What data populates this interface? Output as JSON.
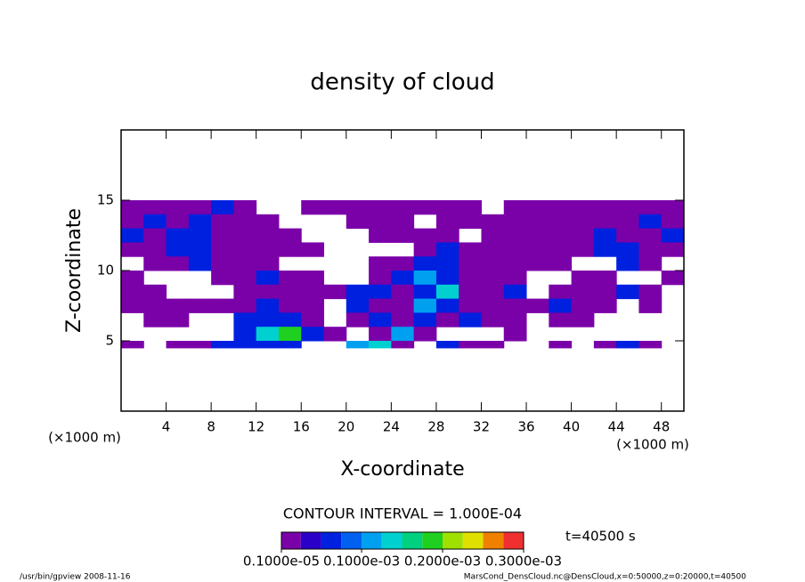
{
  "chart_data": {
    "type": "heatmap",
    "title": "density of cloud",
    "x_label": "X-coordinate",
    "y_label": "Z-coordinate",
    "x_unit": "(×1000 m)",
    "y_unit": "(×1000 m)",
    "xlim": [
      0,
      50
    ],
    "ylim": [
      0,
      20
    ],
    "xticks": [
      4,
      8,
      12,
      16,
      20,
      24,
      28,
      32,
      36,
      40,
      44,
      48
    ],
    "yticks": [
      5,
      10,
      15
    ],
    "x_edges": [
      0,
      2,
      4,
      6,
      8,
      10,
      12,
      14,
      16,
      18,
      20,
      22,
      24,
      26,
      28,
      30,
      32,
      34,
      36,
      38,
      40,
      42,
      44,
      46,
      48,
      50
    ],
    "y_edges": [
      15,
      14,
      13,
      12,
      11,
      10,
      9,
      8,
      7,
      6,
      5,
      4.5
    ],
    "values": [
      [
        2e-05,
        2e-05,
        2e-05,
        2e-05,
        6e-05,
        2e-05,
        null,
        null,
        2e-05,
        2e-05,
        2e-05,
        2e-05,
        2e-05,
        2e-05,
        2e-05,
        2e-05,
        null,
        2e-05,
        2e-05,
        2e-05,
        2e-05,
        2e-05,
        2e-05,
        2e-05,
        2e-05
      ],
      [
        2e-05,
        6e-05,
        2e-05,
        6e-05,
        2e-05,
        2e-05,
        2e-05,
        null,
        null,
        null,
        2e-05,
        2e-05,
        2e-05,
        null,
        2e-05,
        2e-05,
        2e-05,
        2e-05,
        2e-05,
        2e-05,
        2e-05,
        2e-05,
        2e-05,
        6e-05,
        2e-05
      ],
      [
        6e-05,
        2e-05,
        6e-05,
        6e-05,
        2e-05,
        2e-05,
        2e-05,
        2e-05,
        null,
        null,
        null,
        2e-05,
        2e-05,
        2e-05,
        2e-05,
        null,
        2e-05,
        2e-05,
        2e-05,
        2e-05,
        2e-05,
        6e-05,
        2e-05,
        2e-05,
        6e-05
      ],
      [
        2e-05,
        2e-05,
        6e-05,
        6e-05,
        2e-05,
        2e-05,
        2e-05,
        2e-05,
        2e-05,
        null,
        null,
        null,
        null,
        2e-05,
        6e-05,
        2e-05,
        2e-05,
        2e-05,
        2e-05,
        2e-05,
        2e-05,
        6e-05,
        6e-05,
        2e-05,
        2e-05
      ],
      [
        null,
        2e-05,
        2e-05,
        6e-05,
        2e-05,
        2e-05,
        2e-05,
        null,
        null,
        null,
        null,
        2e-05,
        2e-05,
        6e-05,
        6e-05,
        2e-05,
        2e-05,
        2e-05,
        2e-05,
        2e-05,
        null,
        null,
        6e-05,
        2e-05,
        null
      ],
      [
        2e-05,
        null,
        null,
        null,
        2e-05,
        2e-05,
        6e-05,
        2e-05,
        2e-05,
        null,
        null,
        2e-05,
        6e-05,
        0.0001,
        6e-05,
        2e-05,
        2e-05,
        2e-05,
        null,
        null,
        2e-05,
        2e-05,
        null,
        null,
        2e-05
      ],
      [
        2e-05,
        2e-05,
        null,
        null,
        null,
        2e-05,
        2e-05,
        2e-05,
        2e-05,
        2e-05,
        6e-05,
        6e-05,
        2e-05,
        6e-05,
        0.00014,
        2e-05,
        2e-05,
        6e-05,
        null,
        2e-05,
        2e-05,
        2e-05,
        6e-05,
        2e-05,
        null
      ],
      [
        2e-05,
        2e-05,
        2e-05,
        2e-05,
        2e-05,
        2e-05,
        6e-05,
        2e-05,
        2e-05,
        null,
        6e-05,
        2e-05,
        2e-05,
        0.0001,
        6e-05,
        2e-05,
        2e-05,
        2e-05,
        2e-05,
        6e-05,
        2e-05,
        2e-05,
        null,
        2e-05,
        null
      ],
      [
        null,
        2e-05,
        2e-05,
        null,
        null,
        6e-05,
        6e-05,
        6e-05,
        2e-05,
        null,
        2e-05,
        6e-05,
        2e-05,
        6e-05,
        2e-05,
        6e-05,
        2e-05,
        2e-05,
        null,
        2e-05,
        2e-05,
        null,
        null,
        null,
        null
      ],
      [
        null,
        null,
        null,
        null,
        null,
        6e-05,
        0.00014,
        0.00019,
        6e-05,
        2e-05,
        null,
        2e-05,
        0.0001,
        2e-05,
        null,
        null,
        null,
        2e-05,
        null,
        null,
        null,
        null,
        null,
        null,
        null
      ],
      [
        2e-05,
        null,
        2e-05,
        2e-05,
        6e-05,
        6e-05,
        6e-05,
        6e-05,
        null,
        null,
        0.0001,
        0.00014,
        2e-05,
        null,
        6e-05,
        2e-05,
        2e-05,
        null,
        null,
        2e-05,
        null,
        2e-05,
        6e-05,
        2e-05,
        null
      ]
    ],
    "colorbar": {
      "levels": [
        1e-06,
        2.5e-05,
        5e-05,
        7.5e-05,
        0.0001,
        0.000125,
        0.00015,
        0.000175,
        0.0002,
        0.000225,
        0.00025,
        0.000275,
        0.0003
      ],
      "colors": [
        "#7a00a8",
        "#2a00c8",
        "#0020e0",
        "#0060f0",
        "#00a0f0",
        "#00d0d0",
        "#00d080",
        "#20d020",
        "#a0e000",
        "#e0e000",
        "#f08000",
        "#f03030"
      ],
      "ticks": [
        {
          "value": 1e-06,
          "label": "0.1000e-05"
        },
        {
          "value": 0.0001,
          "label": "0.1000e-03"
        },
        {
          "value": 0.0002,
          "label": "0.2000e-03"
        },
        {
          "value": 0.0003,
          "label": "0.3000e-03"
        }
      ]
    },
    "contour_interval": "CONTOUR INTERVAL = 1.000E-04",
    "time": "t=40500 s",
    "footer_left": "/usr/bin/gpview  2008-11-16",
    "footer_right": "MarsCond_DensCloud.nc@DensCloud,x=0:50000,z=0:20000,t=40500"
  }
}
